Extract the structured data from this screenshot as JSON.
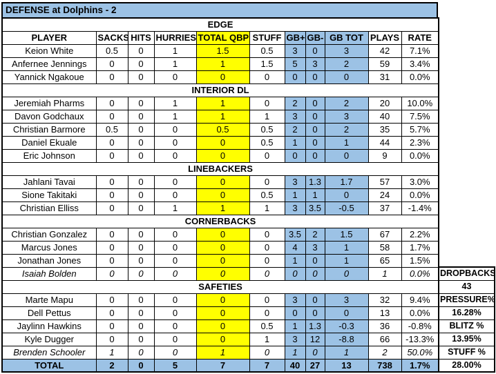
{
  "title": "DEFENSE at Dolphins - 2",
  "colors": {
    "title_bg": "#9CC2E5",
    "highlight_yellow": "#FFFF00",
    "highlight_blue": "#9CC2E5",
    "total_row_bg": "#9CC2E5",
    "border": "#000000"
  },
  "chart_data": {
    "type": "table",
    "title": "DEFENSE at Dolphins - 2",
    "columns": [
      "PLAYER",
      "SACKS",
      "HITS",
      "HURRIES",
      "TOTAL QBP",
      "STUFF",
      "GB+",
      "GB-",
      "GB TOT",
      "PLAYS",
      "RATE"
    ],
    "sections": [
      {
        "title": "EDGE",
        "show_column_headers": true,
        "rows": [
          {
            "player": "Keion White",
            "italic": false,
            "values": [
              "0.5",
              "0",
              "1",
              "1.5",
              "0.5",
              "3",
              "0",
              "3",
              "42",
              "7.1%"
            ]
          },
          {
            "player": "Anfernee Jennings",
            "italic": false,
            "values": [
              "0",
              "0",
              "1",
              "1",
              "1.5",
              "5",
              "3",
              "2",
              "59",
              "3.4%"
            ]
          },
          {
            "player": "Yannick Ngakoue",
            "italic": false,
            "values": [
              "0",
              "0",
              "0",
              "0",
              "0",
              "0",
              "0",
              "0",
              "31",
              "0.0%"
            ]
          }
        ]
      },
      {
        "title": "INTERIOR DL",
        "show_column_headers": false,
        "rows": [
          {
            "player": "Jeremiah Pharms",
            "italic": false,
            "values": [
              "0",
              "0",
              "1",
              "1",
              "0",
              "2",
              "0",
              "2",
              "20",
              "10.0%"
            ]
          },
          {
            "player": "Davon Godchaux",
            "italic": false,
            "values": [
              "0",
              "0",
              "1",
              "1",
              "1",
              "3",
              "0",
              "3",
              "40",
              "7.5%"
            ]
          },
          {
            "player": "Christian Barmore",
            "italic": false,
            "values": [
              "0.5",
              "0",
              "0",
              "0.5",
              "0.5",
              "2",
              "0",
              "2",
              "35",
              "5.7%"
            ]
          },
          {
            "player": "Daniel Ekuale",
            "italic": false,
            "values": [
              "0",
              "0",
              "0",
              "0",
              "0.5",
              "1",
              "0",
              "1",
              "44",
              "2.3%"
            ]
          },
          {
            "player": "Eric Johnson",
            "italic": false,
            "values": [
              "0",
              "0",
              "0",
              "0",
              "0",
              "0",
              "0",
              "0",
              "9",
              "0.0%"
            ]
          }
        ]
      },
      {
        "title": "LINEBACKERS",
        "show_column_headers": false,
        "rows": [
          {
            "player": "Jahlani Tavai",
            "italic": false,
            "values": [
              "0",
              "0",
              "0",
              "0",
              "0",
              "3",
              "1.3",
              "1.7",
              "57",
              "3.0%"
            ]
          },
          {
            "player": "Sione Takitaki",
            "italic": false,
            "values": [
              "0",
              "0",
              "0",
              "0",
              "0.5",
              "1",
              "1",
              "0",
              "24",
              "0.0%"
            ]
          },
          {
            "player": "Christian Elliss",
            "italic": false,
            "values": [
              "0",
              "0",
              "1",
              "1",
              "1",
              "3",
              "3.5",
              "-0.5",
              "37",
              "-1.4%"
            ]
          }
        ]
      },
      {
        "title": "CORNERBACKS",
        "show_column_headers": false,
        "rows": [
          {
            "player": "Christian Gonzalez",
            "italic": false,
            "values": [
              "0",
              "0",
              "0",
              "0",
              "0",
              "3.5",
              "2",
              "1.5",
              "67",
              "2.2%"
            ]
          },
          {
            "player": "Marcus Jones",
            "italic": false,
            "values": [
              "0",
              "0",
              "0",
              "0",
              "0",
              "4",
              "3",
              "1",
              "58",
              "1.7%"
            ]
          },
          {
            "player": "Jonathan Jones",
            "italic": false,
            "values": [
              "0",
              "0",
              "0",
              "0",
              "0",
              "1",
              "0",
              "1",
              "65",
              "1.5%"
            ]
          },
          {
            "player": "Isaiah Bolden",
            "italic": true,
            "values": [
              "0",
              "0",
              "0",
              "0",
              "0",
              "0",
              "0",
              "0",
              "1",
              "0.0%"
            ]
          }
        ]
      },
      {
        "title": "SAFETIES",
        "show_column_headers": false,
        "rows": [
          {
            "player": "Marte Mapu",
            "italic": false,
            "values": [
              "0",
              "0",
              "0",
              "0",
              "0",
              "3",
              "0",
              "3",
              "32",
              "9.4%"
            ]
          },
          {
            "player": "Dell Pettus",
            "italic": false,
            "values": [
              "0",
              "0",
              "0",
              "0",
              "0",
              "0",
              "0",
              "0",
              "13",
              "0.0%"
            ]
          },
          {
            "player": "Jaylinn Hawkins",
            "italic": false,
            "values": [
              "0",
              "0",
              "0",
              "0",
              "0.5",
              "1",
              "1.3",
              "-0.3",
              "36",
              "-0.8%"
            ]
          },
          {
            "player": "Kyle Dugger",
            "italic": false,
            "values": [
              "0",
              "0",
              "0",
              "0",
              "1",
              "3",
              "12",
              "-8.8",
              "66",
              "-13.3%"
            ]
          },
          {
            "player": "Brenden Schooler",
            "italic": true,
            "values": [
              "1",
              "0",
              "0",
              "1",
              "0",
              "1",
              "0",
              "1",
              "2",
              "50.0%"
            ]
          }
        ]
      }
    ],
    "total_row": {
      "label": "TOTAL",
      "values": [
        "2",
        "0",
        "5",
        "7",
        "7",
        "40",
        "27",
        "13",
        "738",
        "1.7%"
      ]
    },
    "side_panel": [
      "DROPBACKS",
      "43",
      "PRESSURE%",
      "16.28%",
      "BLITZ %",
      "13.95%",
      "STUFF %",
      "28.00%"
    ]
  }
}
